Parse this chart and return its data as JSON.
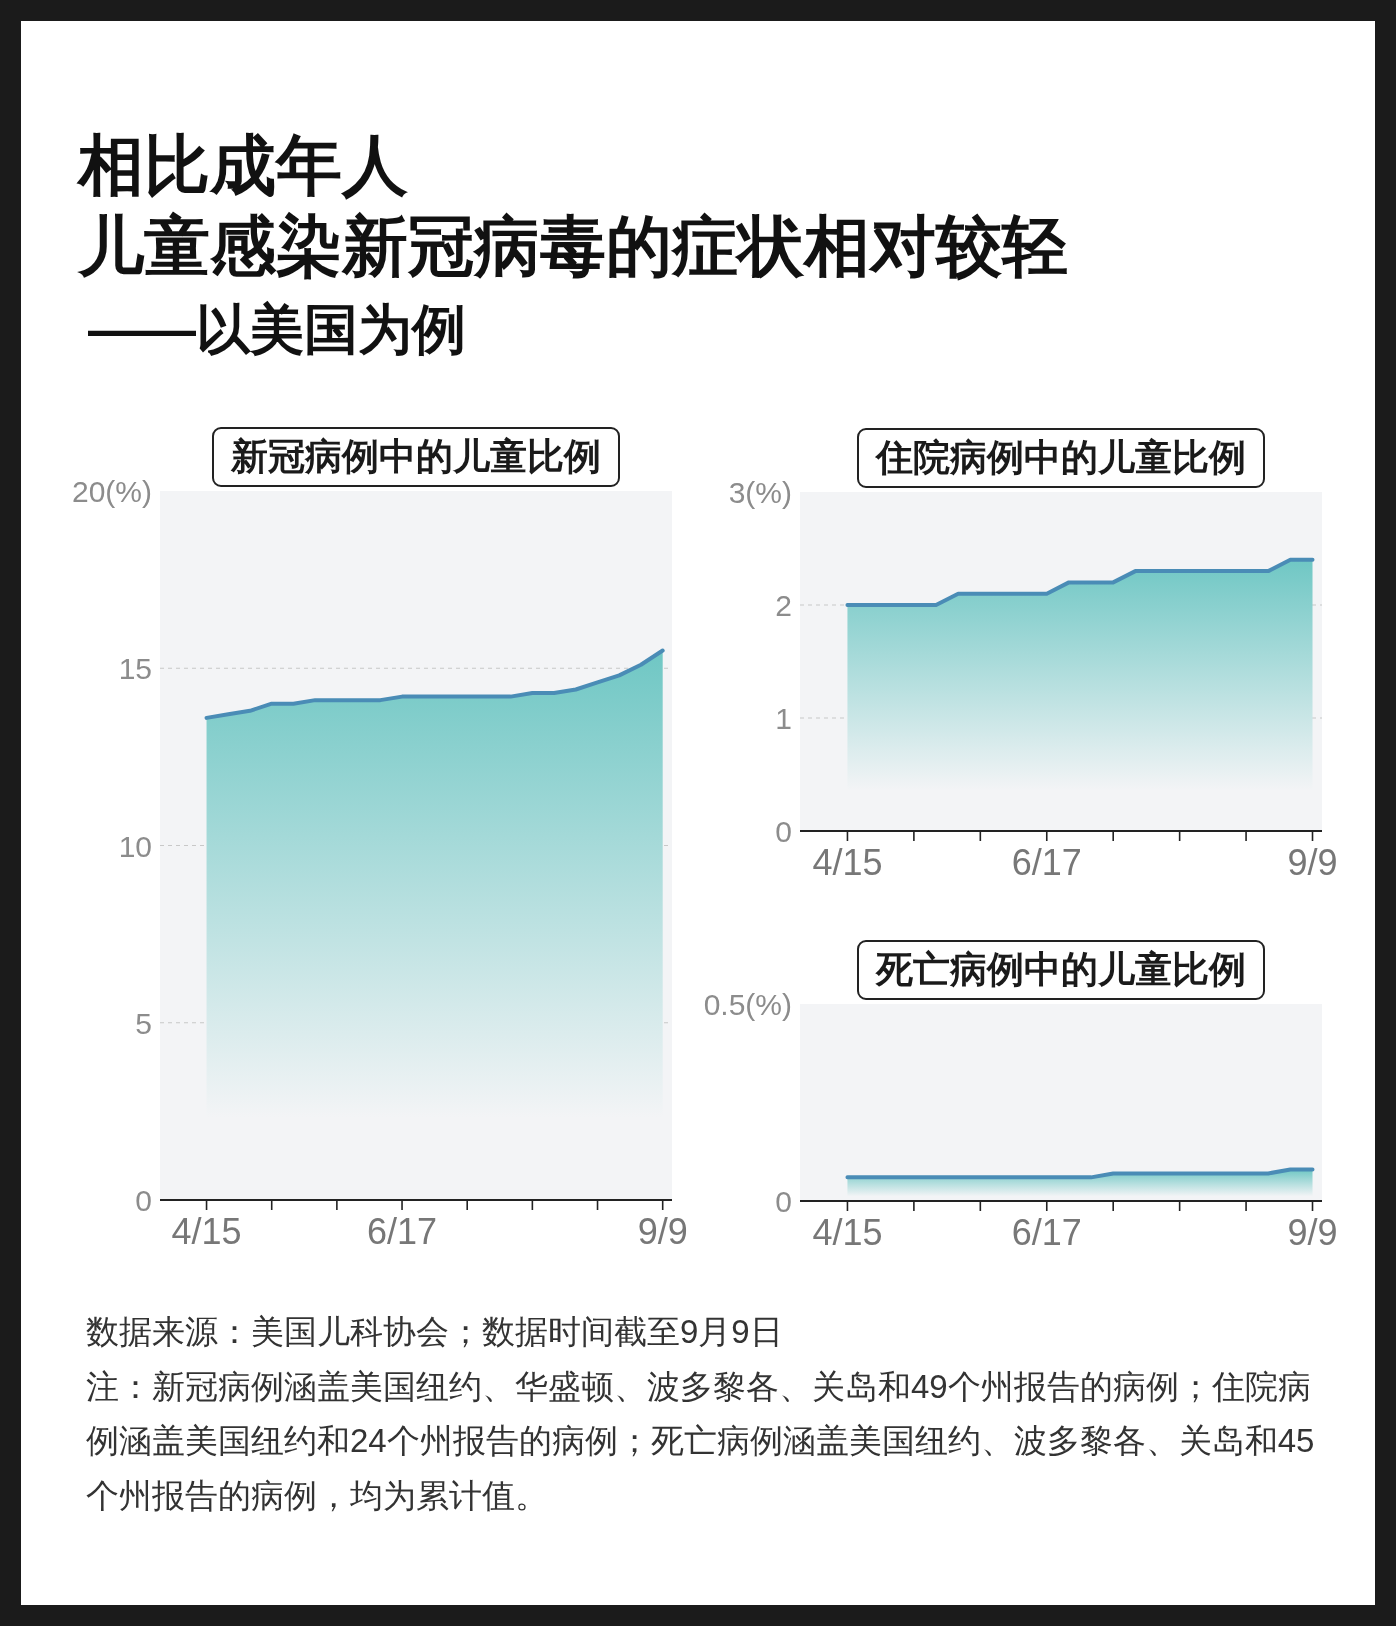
{
  "chart_data": [
    {
      "type": "other",
      "title": "相比成年人",
      "subtitle": "儿童感染新冠病毒的症状相对较轻",
      "annotations": [
        "——以美国为例"
      ]
    },
    {
      "type": "area",
      "title": "新冠病例中的儿童比例",
      "x": [
        "--04-15",
        "--04-22",
        "--04-29",
        "--05-06",
        "--05-13",
        "--05-20",
        "--05-27",
        "--06-03",
        "--06-10",
        "--06-17",
        "--06-24",
        "--07-01",
        "--07-08",
        "--07-15",
        "--07-22",
        "--07-29",
        "--08-05",
        "--08-12",
        "--08-19",
        "--08-26",
        "--09-02",
        "--09-09"
      ],
      "values": [
        13.6,
        13.7,
        13.8,
        14.0,
        14.0,
        14.1,
        14.1,
        14.1,
        14.1,
        14.2,
        14.2,
        14.2,
        14.2,
        14.2,
        14.2,
        14.3,
        14.3,
        14.4,
        14.6,
        14.8,
        15.1,
        15.5
      ],
      "color": "#4a8cb6",
      "xlim": [
        "--03-31",
        "--09-12"
      ],
      "xticks": [
        {
          "value": "--04-15",
          "label": "4/15"
        },
        {
          "value": "--05-06",
          "label": null
        },
        {
          "value": "--05-27",
          "label": null
        },
        {
          "value": "--06-17",
          "label": "6/17"
        },
        {
          "value": "--07-08",
          "label": null
        },
        {
          "value": "--07-29",
          "label": null
        },
        {
          "value": "--08-19",
          "label": null
        },
        {
          "value": "--09-09",
          "label": "9/9"
        }
      ],
      "ylim": [
        0,
        20
      ],
      "yticks": [
        0,
        5,
        10,
        15,
        {
          "value": 20,
          "label": "20(%)"
        }
      ],
      "grid": "y"
    },
    {
      "type": "area",
      "title": "住院病例中的儿童比例",
      "x": [
        "--04-15",
        "--04-22",
        "--04-29",
        "--05-06",
        "--05-13",
        "--05-20",
        "--05-27",
        "--06-03",
        "--06-10",
        "--06-17",
        "--06-24",
        "--07-01",
        "--07-08",
        "--07-15",
        "--07-22",
        "--07-29",
        "--08-05",
        "--08-12",
        "--08-19",
        "--08-26",
        "--09-02",
        "--09-09"
      ],
      "values": [
        2.0,
        2.0,
        2.0,
        2.0,
        2.0,
        2.1,
        2.1,
        2.1,
        2.1,
        2.1,
        2.2,
        2.2,
        2.2,
        2.3,
        2.3,
        2.3,
        2.3,
        2.3,
        2.3,
        2.3,
        2.4,
        2.4
      ],
      "color": "#4a8cb6",
      "xlim": [
        "--03-31",
        "--09-12"
      ],
      "xticks": [
        {
          "value": "--04-15",
          "label": "4/15"
        },
        {
          "value": "--05-06",
          "label": null
        },
        {
          "value": "--05-27",
          "label": null
        },
        {
          "value": "--06-17",
          "label": "6/17"
        },
        {
          "value": "--07-08",
          "label": null
        },
        {
          "value": "--07-29",
          "label": null
        },
        {
          "value": "--08-19",
          "label": null
        },
        {
          "value": "--09-09",
          "label": "9/9"
        }
      ],
      "ylim": [
        0,
        3
      ],
      "yticks": [
        0,
        1,
        2,
        {
          "value": 3,
          "label": "3(%)"
        }
      ],
      "grid": "y"
    },
    {
      "type": "area",
      "title": "死亡病例中的儿童比例",
      "x": [
        "--04-15",
        "--04-22",
        "--04-29",
        "--05-06",
        "--05-13",
        "--05-20",
        "--05-27",
        "--06-03",
        "--06-10",
        "--06-17",
        "--06-24",
        "--07-01",
        "--07-08",
        "--07-15",
        "--07-22",
        "--07-29",
        "--08-05",
        "--08-12",
        "--08-19",
        "--08-26",
        "--09-02",
        "--09-09"
      ],
      "values": [
        0.06,
        0.06,
        0.06,
        0.06,
        0.06,
        0.06,
        0.06,
        0.06,
        0.06,
        0.06,
        0.06,
        0.06,
        0.07,
        0.07,
        0.07,
        0.07,
        0.07,
        0.07,
        0.07,
        0.07,
        0.08,
        0.08
      ],
      "color": "#4a8cb6",
      "xlim": [
        "--03-31",
        "--09-12"
      ],
      "xticks": [
        {
          "value": "--04-15",
          "label": "4/15"
        },
        {
          "value": "--05-06",
          "label": null
        },
        {
          "value": "--05-27",
          "label": null
        },
        {
          "value": "--06-17",
          "label": "6/17"
        },
        {
          "value": "--07-08",
          "label": null
        },
        {
          "value": "--07-29",
          "label": null
        },
        {
          "value": "--08-19",
          "label": null
        },
        {
          "value": "--09-09",
          "label": "9/9"
        }
      ],
      "ylim": [
        0,
        0.5
      ],
      "yticks": [
        0,
        {
          "value": 0.5,
          "label": "0.5(%)"
        }
      ]
    },
    {
      "type": "other",
      "annotations": [
        "数据来源：美国儿科协会；数据时间截至9月9日",
        "注：新冠病例涵盖美国纽约、华盛顿、波多黎各、关岛和49个州报告的病例；住院病例涵盖美国纽约和24个州报告的病例；死亡病例涵盖美国纽约、波多黎各、关岛和45个州报告的病例，均为累计值。"
      ]
    }
  ]
}
